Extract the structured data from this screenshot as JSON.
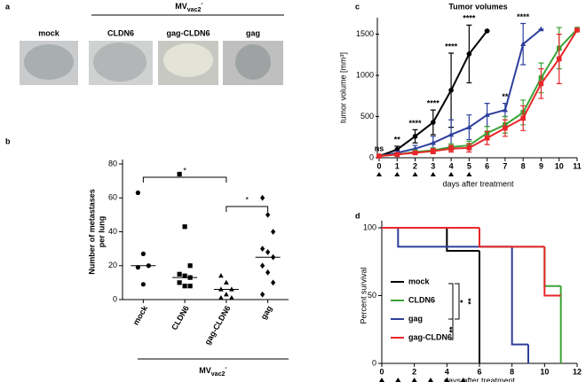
{
  "figure": {
    "panel_letters": [
      "a",
      "b",
      "c",
      "d"
    ],
    "photo_panel": {
      "group_label": {
        "main": "MV",
        "sub": "vac2",
        "sup": "-"
      },
      "labels": [
        "mock",
        "CLDN6",
        "gag-CLDN6",
        "gag"
      ]
    }
  },
  "chart_data": [
    {
      "type": "scatter",
      "ylabel": [
        "Number of metastases",
        "per lung"
      ],
      "categories": [
        "mock",
        "CLDN6",
        "gag-CLDN6",
        "gag"
      ],
      "values": [
        [
          63,
          27,
          20,
          19,
          9
        ],
        [
          74,
          43,
          20,
          15,
          14,
          13,
          10,
          8,
          8
        ],
        [
          14,
          10,
          6,
          6,
          3,
          1,
          1
        ],
        [
          60,
          50,
          40,
          30,
          28,
          25,
          20,
          16,
          10,
          3
        ]
      ],
      "medians": [
        20,
        13,
        6,
        25
      ],
      "markers": [
        "circle",
        "square",
        "triangle",
        "diamond"
      ],
      "color": "#000000",
      "ylim": [
        0,
        80
      ],
      "yticks": [
        0,
        20,
        40,
        60,
        80
      ],
      "significance": [
        "*",
        "*"
      ],
      "group_label": {
        "main": "MV",
        "sub": "vac2",
        "sup": "-"
      }
    },
    {
      "type": "line",
      "title": "Tumor volumes",
      "xlabel": "days after treatment",
      "ylabel": "tumor volume [mm³]",
      "x": [
        0,
        1,
        2,
        3,
        4,
        5,
        6,
        7,
        8,
        9,
        10,
        11
      ],
      "xlim": [
        0,
        11
      ],
      "xticks": [
        0,
        1,
        2,
        3,
        4,
        5,
        6,
        7,
        8,
        9,
        10,
        11
      ],
      "ylim": [
        0,
        1700
      ],
      "yticks": [
        0,
        500,
        1000,
        1500
      ],
      "series": [
        {
          "name": "mock",
          "color": "#000000",
          "marker": "circle",
          "values": [
            20,
            100,
            260,
            430,
            820,
            1260,
            1540,
            null,
            null,
            null,
            null,
            null
          ],
          "errors": [
            10,
            40,
            80,
            150,
            450,
            350,
            0,
            null,
            null,
            null,
            null,
            null
          ]
        },
        {
          "name": "gag",
          "color": "#2e3f9c",
          "marker": "triangle",
          "values": [
            20,
            60,
            110,
            180,
            280,
            370,
            520,
            580,
            1380,
            1560,
            null,
            null
          ],
          "errors": [
            5,
            20,
            40,
            80,
            180,
            150,
            140,
            80,
            250,
            0,
            null,
            null
          ]
        },
        {
          "name": "CLDN6",
          "color": "#3aa335",
          "marker": "square",
          "values": [
            20,
            40,
            70,
            90,
            130,
            150,
            300,
            400,
            550,
            970,
            1330,
            1560
          ],
          "errors": [
            5,
            10,
            20,
            30,
            40,
            50,
            80,
            100,
            150,
            180,
            250,
            0
          ]
        },
        {
          "name": "gag-CLDN6",
          "color": "#e8262a",
          "marker": "square",
          "values": [
            20,
            40,
            60,
            80,
            110,
            120,
            240,
            360,
            480,
            900,
            1200,
            1550
          ],
          "errors": [
            5,
            10,
            20,
            30,
            40,
            50,
            80,
            100,
            150,
            180,
            300,
            0
          ]
        }
      ],
      "significance": [
        {
          "x": 0,
          "label": "ns"
        },
        {
          "x": 1,
          "label": "**"
        },
        {
          "x": 2,
          "label": "****"
        },
        {
          "x": 3,
          "label": "****"
        },
        {
          "x": 4,
          "label": "****"
        },
        {
          "x": 5,
          "label": "****"
        },
        {
          "x": 7,
          "label": "**"
        },
        {
          "x": 8,
          "label": "****"
        }
      ],
      "treatment_days": [
        0,
        1,
        2,
        3,
        4,
        5
      ]
    },
    {
      "type": "step",
      "xlabel": "days after treatment",
      "ylabel": "Percent survival",
      "xlim": [
        0,
        12
      ],
      "xticks": [
        0,
        2,
        4,
        6,
        8,
        10,
        12
      ],
      "ylim": [
        0,
        100
      ],
      "yticks": [
        0,
        50,
        100
      ],
      "series": [
        {
          "name": "mock",
          "color": "#000000",
          "x": [
            0,
            4,
            6
          ],
          "values": [
            100,
            83,
            0
          ]
        },
        {
          "name": "CLDN6",
          "color": "#3aa335",
          "x": [
            0,
            6,
            10,
            11
          ],
          "values": [
            100,
            86,
            57,
            0
          ]
        },
        {
          "name": "gag",
          "color": "#2e3f9c",
          "x": [
            0,
            1,
            8,
            9
          ],
          "values": [
            100,
            86,
            14,
            0
          ]
        },
        {
          "name": "gag-CLDN6",
          "color": "#e8262a",
          "x": [
            0,
            6,
            10,
            11
          ],
          "values": [
            100,
            86,
            50,
            50
          ]
        }
      ],
      "significance": [
        "*",
        "**",
        "**"
      ],
      "treatment_days": [
        0,
        1,
        2,
        3,
        4,
        5
      ]
    }
  ]
}
